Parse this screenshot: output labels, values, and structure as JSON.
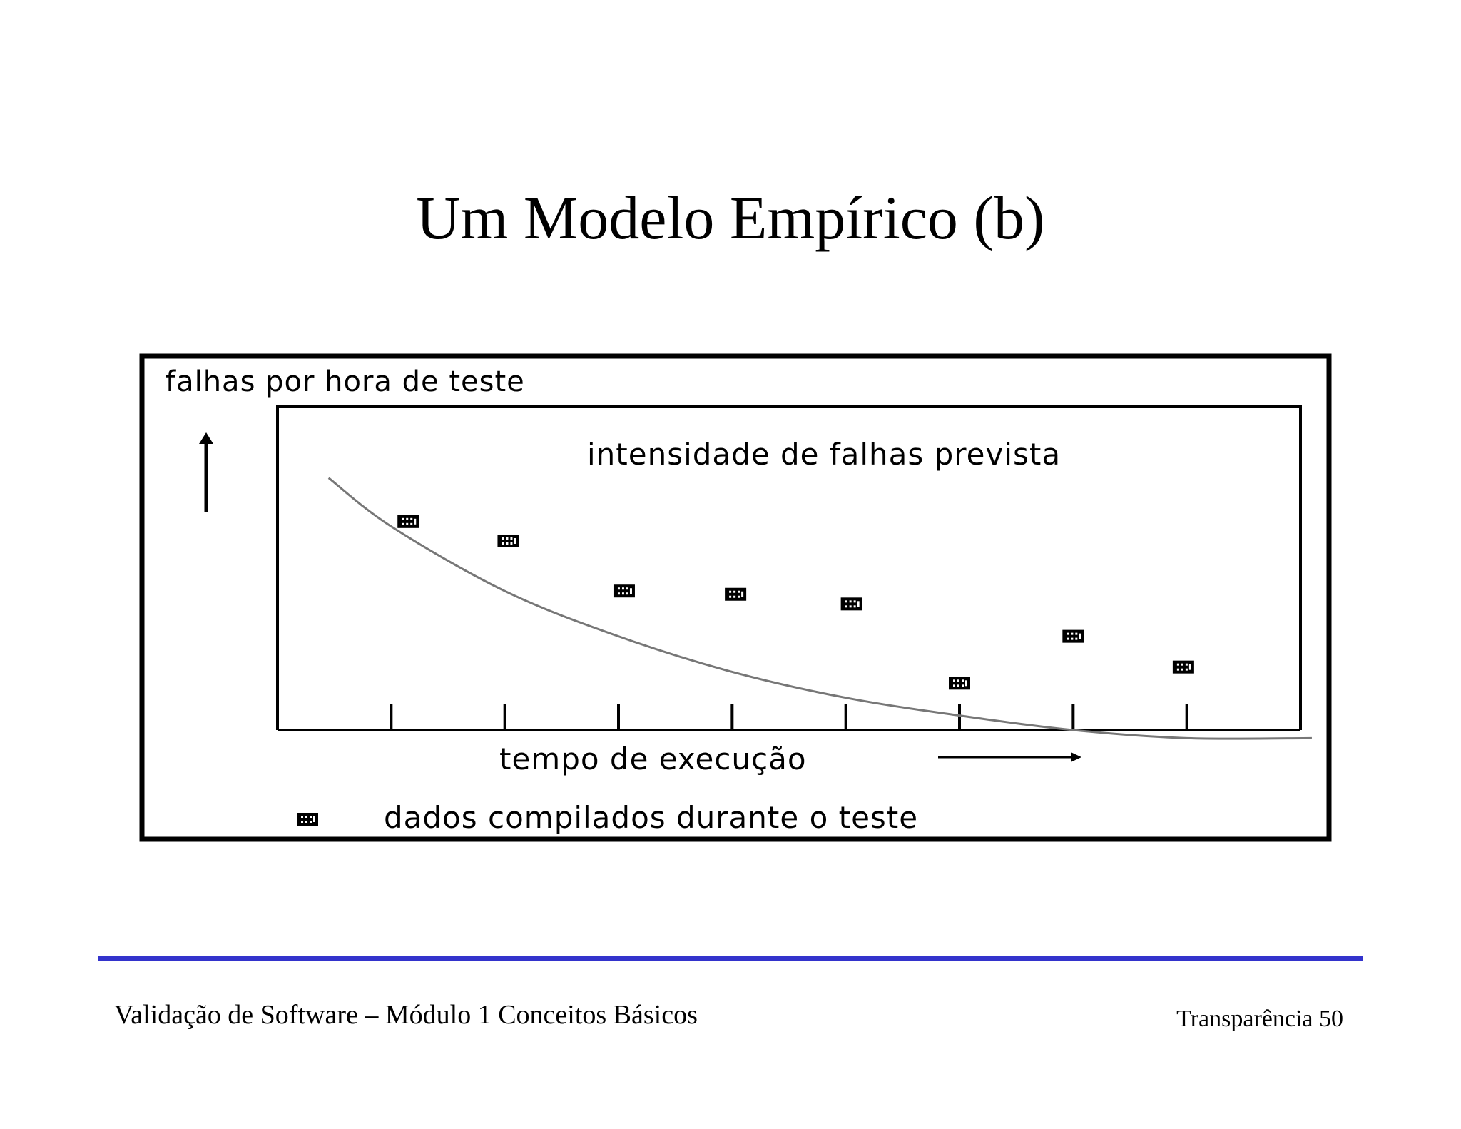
{
  "slide": {
    "title": "Um Modelo Empírico (b)"
  },
  "chart_data": {
    "type": "scatter",
    "title": "",
    "ylabel": "falhas por hora de teste",
    "xlabel": "tempo de execução",
    "curve_label": "intensidade de falhas prevista",
    "legend_label": "dados compilados durante o teste",
    "x_ticks": [
      1,
      2,
      3,
      4,
      5,
      6,
      7,
      8
    ],
    "xlim": [
      0,
      9
    ],
    "ylim": [
      0,
      1
    ],
    "grid": false,
    "series": [
      {
        "type": "points",
        "points": [
          {
            "x": 1.15,
            "y": 0.645
          },
          {
            "x": 2.03,
            "y": 0.585
          },
          {
            "x": 3.05,
            "y": 0.43
          },
          {
            "x": 4.03,
            "y": 0.42
          },
          {
            "x": 5.05,
            "y": 0.39
          },
          {
            "x": 6.0,
            "y": 0.145
          },
          {
            "x": 7.0,
            "y": 0.29
          },
          {
            "x": 7.97,
            "y": 0.195
          }
        ]
      },
      {
        "type": "curve",
        "points": [
          {
            "x": 0.45,
            "y": 0.78
          },
          {
            "x": 1.0,
            "y": 0.63
          },
          {
            "x": 2.0,
            "y": 0.43
          },
          {
            "x": 3.0,
            "y": 0.29
          },
          {
            "x": 4.0,
            "y": 0.18
          },
          {
            "x": 5.0,
            "y": 0.1
          },
          {
            "x": 6.0,
            "y": 0.045
          },
          {
            "x": 7.0,
            "y": 0.0
          },
          {
            "x": 8.0,
            "y": -0.025
          },
          {
            "x": 9.1,
            "y": -0.025
          }
        ]
      }
    ],
    "colors": {
      "curve": "#777777",
      "marker": "#000000"
    }
  },
  "footer": {
    "left": "Validação de Software – Módulo 1 Conceitos Básicos",
    "right": "Transparência 50",
    "rule_color": "#3333cc"
  }
}
